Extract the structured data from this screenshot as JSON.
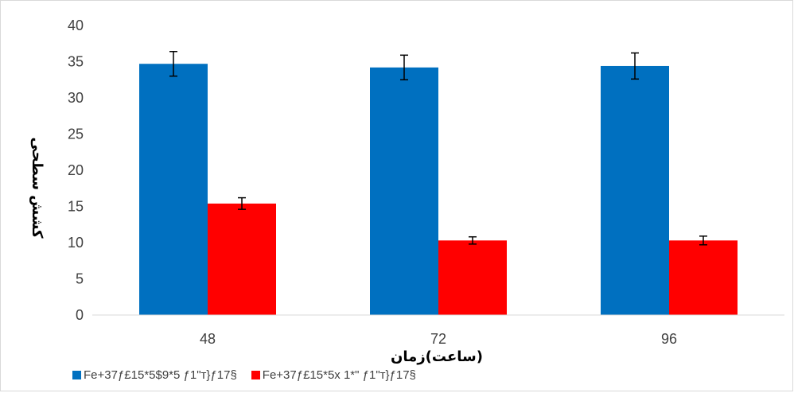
{
  "chart_data": {
    "type": "bar",
    "categories": [
      "48",
      "72",
      "96"
    ],
    "series": [
      {
        "name": "Fe+37ƒ£15*5$9*5 ƒ1\"т}ƒ17§",
        "color": "#0070c0",
        "values": [
          34.7,
          34.2,
          34.4
        ],
        "errors": [
          1.7,
          1.7,
          1.8
        ]
      },
      {
        "name": "Fe+37ƒ£15*5x 1*\" ƒ1\"т}ƒ17§",
        "color": "#ff0000",
        "values": [
          15.4,
          10.3,
          10.3
        ],
        "errors": [
          0.8,
          0.5,
          0.6
        ]
      }
    ],
    "xlabel": "ساعت)زمان)",
    "ylabel": "کشش سطحی",
    "ylim": [
      0,
      40
    ],
    "yticks": [
      0,
      5,
      10,
      15,
      20,
      25,
      30,
      35,
      40
    ],
    "grid": false,
    "legend_position": "bottom"
  }
}
